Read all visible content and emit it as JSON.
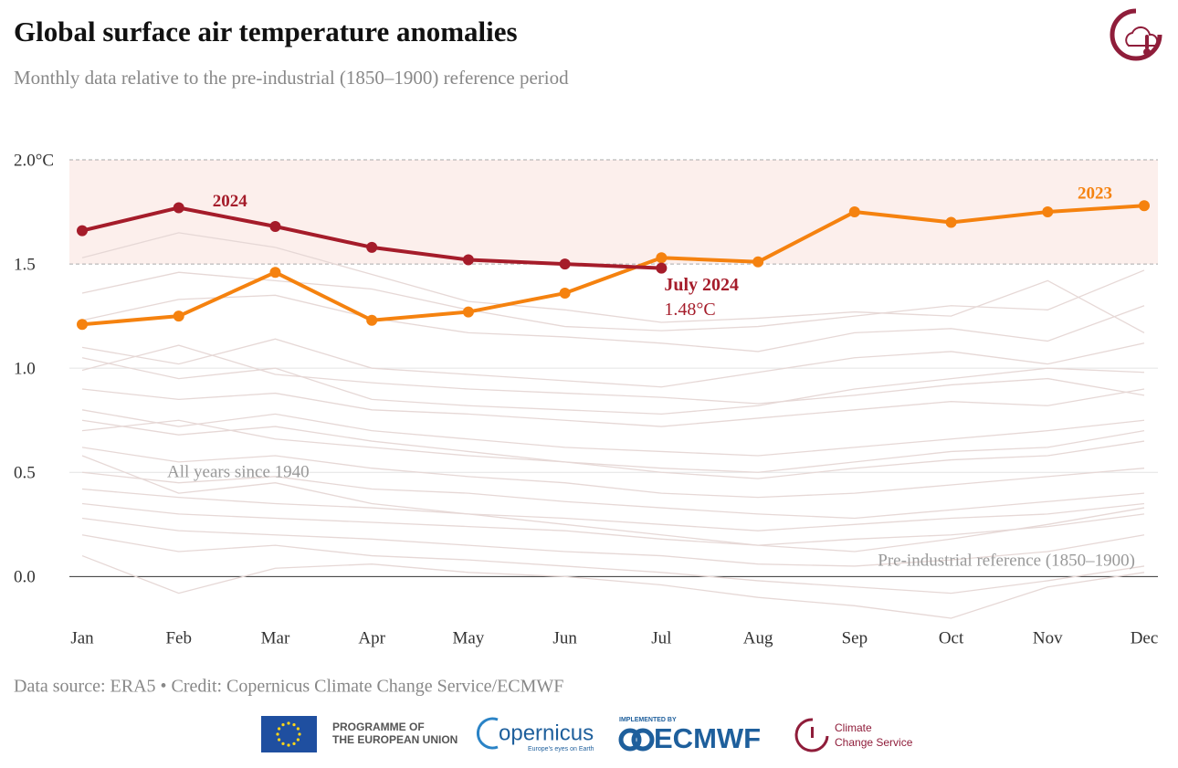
{
  "chart_data": {
    "type": "line",
    "title": "Global surface air temperature anomalies",
    "subtitle": "Monthly data relative to the pre-industrial (1850–1900) reference period",
    "categories": [
      "Jan",
      "Feb",
      "Mar",
      "Apr",
      "May",
      "Jun",
      "Jul",
      "Aug",
      "Sep",
      "Oct",
      "Nov",
      "Dec"
    ],
    "ylim": [
      -0.2,
      2.0
    ],
    "yticks": [
      {
        "value": 0,
        "label": "0.0"
      },
      0.5,
      {
        "value": 1,
        "label": "1.0"
      },
      1.5,
      {
        "value": 2,
        "label": "2.0°C"
      }
    ],
    "grid": true,
    "band": [
      1.5,
      2.0
    ],
    "band_color": "#fcefec",
    "series": [
      {
        "name": "2023",
        "color": "#f5820f",
        "values": [
          1.21,
          1.25,
          1.46,
          1.23,
          1.27,
          1.36,
          1.53,
          1.51,
          1.75,
          1.7,
          1.75,
          1.78
        ]
      },
      {
        "name": "2024",
        "color": "#a51c2a",
        "values": [
          1.66,
          1.77,
          1.68,
          1.58,
          1.52,
          1.5,
          1.48,
          null,
          null,
          null,
          null,
          null
        ],
        "value_labels": [
          null,
          null,
          null,
          null,
          null,
          null,
          "1.48°C"
        ]
      }
    ],
    "annotations": [
      "July 2024",
      "All years since 1940",
      "Pre-industrial reference (1850–1900)"
    ],
    "background_color": "#e6d8d6",
    "background_series": [
      [
        1.36,
        1.46,
        1.42,
        1.38,
        1.28,
        1.2,
        1.18,
        1.2,
        1.25,
        1.3,
        1.28,
        1.47
      ],
      [
        1.53,
        1.65,
        1.58,
        1.45,
        1.32,
        1.28,
        1.22,
        1.24,
        1.27,
        1.25,
        1.42,
        1.17
      ],
      [
        1.23,
        1.33,
        1.35,
        1.24,
        1.17,
        1.15,
        1.12,
        1.08,
        1.17,
        1.19,
        1.13,
        1.3
      ],
      [
        1.1,
        1.02,
        1.14,
        1.0,
        0.97,
        0.94,
        0.91,
        0.98,
        1.05,
        1.08,
        1.02,
        1.12
      ],
      [
        0.99,
        1.11,
        0.97,
        0.93,
        0.9,
        0.88,
        0.86,
        0.83,
        0.87,
        0.92,
        0.95,
        0.87
      ],
      [
        0.9,
        0.85,
        0.88,
        0.8,
        0.78,
        0.75,
        0.72,
        0.76,
        0.8,
        0.84,
        0.82,
        0.9
      ],
      [
        0.8,
        0.72,
        0.78,
        0.7,
        0.66,
        0.62,
        0.6,
        0.58,
        0.62,
        0.66,
        0.7,
        0.75
      ],
      [
        0.7,
        0.75,
        0.66,
        0.62,
        0.58,
        0.55,
        0.5,
        0.47,
        0.52,
        0.56,
        0.58,
        0.65
      ],
      [
        0.62,
        0.55,
        0.58,
        0.52,
        0.48,
        0.45,
        0.4,
        0.38,
        0.4,
        0.44,
        0.48,
        0.52
      ],
      [
        0.5,
        0.45,
        0.48,
        0.42,
        0.4,
        0.36,
        0.33,
        0.3,
        0.28,
        0.32,
        0.36,
        0.4
      ],
      [
        0.42,
        0.38,
        0.35,
        0.33,
        0.3,
        0.28,
        0.25,
        0.22,
        0.25,
        0.28,
        0.3,
        0.35
      ],
      [
        0.35,
        0.3,
        0.28,
        0.26,
        0.24,
        0.22,
        0.18,
        0.15,
        0.18,
        0.2,
        0.24,
        0.3
      ],
      [
        0.28,
        0.22,
        0.2,
        0.18,
        0.15,
        0.12,
        0.1,
        0.06,
        0.05,
        0.08,
        0.12,
        0.2
      ],
      [
        0.2,
        0.12,
        0.15,
        0.1,
        0.08,
        0.05,
        0.02,
        -0.02,
        -0.05,
        -0.08,
        -0.02,
        0.05
      ],
      [
        0.1,
        -0.08,
        0.04,
        0.06,
        0.02,
        0.0,
        -0.04,
        -0.1,
        -0.14,
        -0.2,
        -0.05,
        0.02
      ],
      [
        0.58,
        0.4,
        0.45,
        0.35,
        0.3,
        0.25,
        0.2,
        0.15,
        0.12,
        0.18,
        0.25,
        0.33
      ],
      [
        1.05,
        0.95,
        1.0,
        0.85,
        0.82,
        0.8,
        0.78,
        0.82,
        0.9,
        0.95,
        1.0,
        0.98
      ],
      [
        0.75,
        0.68,
        0.72,
        0.65,
        0.6,
        0.55,
        0.52,
        0.5,
        0.55,
        0.6,
        0.62,
        0.7
      ]
    ],
    "source": "Data source: ERA5 • Credit: Copernicus Climate Change Service/ECMWF",
    "logos": {
      "eu": "PROGRAMME OF",
      "eu2": "THE EUROPEAN UNION",
      "copernicus": "opernicus",
      "copernicus_tag": "Europe's eyes on Earth",
      "ecmwf_tag": "IMPLEMENTED BY",
      "ecmwf": "ECMWF",
      "c3s": "Climate",
      "c3s2": "Change Service"
    }
  }
}
